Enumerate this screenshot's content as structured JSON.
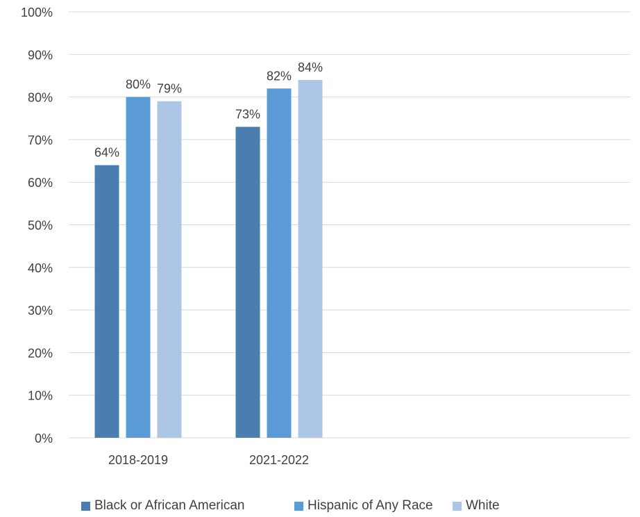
{
  "chart_data": {
    "type": "bar",
    "categories": [
      "2018-2019",
      "2021-2022"
    ],
    "series": [
      {
        "name": "Black or African American",
        "values": [
          64,
          73
        ],
        "labels": [
          "64%",
          "73%"
        ],
        "color": "#4a7eb0"
      },
      {
        "name": "Hispanic of Any Race",
        "values": [
          80,
          82
        ],
        "labels": [
          "80%",
          "82%"
        ],
        "color": "#5b9bd5"
      },
      {
        "name": "White",
        "values": [
          79,
          84
        ],
        "labels": [
          "79%",
          "84%"
        ],
        "color": "#adc6e5"
      }
    ],
    "ylim": [
      0,
      100
    ],
    "yticks": [
      0,
      10,
      20,
      30,
      40,
      50,
      60,
      70,
      80,
      90,
      100
    ],
    "ytick_labels": [
      "0%",
      "10%",
      "20%",
      "30%",
      "40%",
      "50%",
      "60%",
      "70%",
      "80%",
      "90%",
      "100%"
    ],
    "grid": true,
    "legend_position": "bottom-left",
    "title": "",
    "xlabel": "",
    "ylabel": ""
  }
}
